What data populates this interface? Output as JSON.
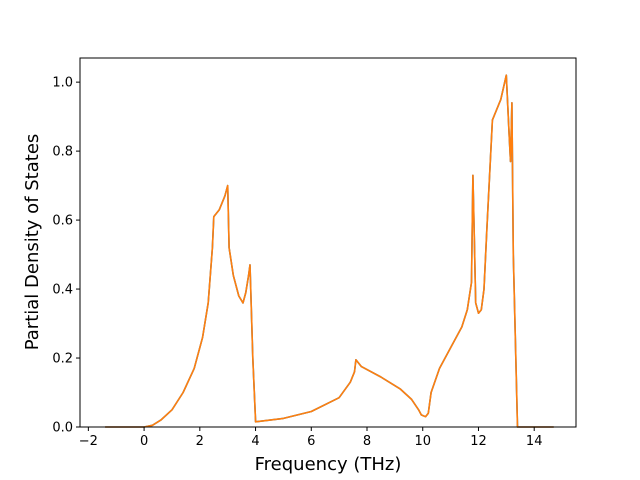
{
  "chart_data": {
    "type": "line",
    "title": "",
    "xlabel": "Frequency (THz)",
    "ylabel": "Partial Density of States",
    "xlim": [
      -2.3,
      15.5
    ],
    "ylim": [
      0.0,
      1.07
    ],
    "x_ticks": [
      -2,
      0,
      2,
      4,
      6,
      8,
      10,
      12,
      14
    ],
    "y_ticks": [
      0.0,
      0.2,
      0.4,
      0.6,
      0.8,
      1.0
    ],
    "x_tick_labels": [
      "−2",
      "0",
      "2",
      "4",
      "6",
      "8",
      "10",
      "12",
      "14"
    ],
    "y_tick_labels": [
      "0.0",
      "0.2",
      "0.4",
      "0.6",
      "0.8",
      "1.0"
    ],
    "grid": false,
    "legend": "none",
    "colors": {
      "series_1": "#1f77b4",
      "series_2": "#ff7f0e"
    },
    "series": [
      {
        "x": [
          -1.4,
          -0.6,
          0.0,
          0.3,
          0.6,
          1.0,
          1.4,
          1.8,
          2.1,
          2.3,
          2.45,
          2.5,
          2.7,
          2.9,
          3.0,
          3.05,
          3.2,
          3.4,
          3.55,
          3.65,
          3.75,
          3.8,
          3.9,
          4.0,
          5.0,
          6.0,
          7.0,
          7.4,
          7.55,
          7.6,
          7.8,
          8.5,
          9.2,
          9.6,
          9.85,
          9.95,
          10.1,
          10.2,
          10.3,
          10.6,
          11.0,
          11.4,
          11.6,
          11.75,
          11.8,
          11.85,
          11.9,
          12.0,
          12.1,
          12.2,
          12.3,
          12.5,
          12.8,
          13.0,
          13.1,
          13.15,
          13.2,
          13.25,
          13.4,
          13.6,
          14.0,
          14.7
        ],
        "values": [
          0.0,
          0.0,
          0.0,
          0.005,
          0.02,
          0.05,
          0.1,
          0.17,
          0.26,
          0.36,
          0.52,
          0.61,
          0.63,
          0.67,
          0.7,
          0.52,
          0.44,
          0.38,
          0.36,
          0.39,
          0.44,
          0.47,
          0.2,
          0.015,
          0.025,
          0.045,
          0.085,
          0.13,
          0.16,
          0.195,
          0.175,
          0.145,
          0.11,
          0.08,
          0.05,
          0.035,
          0.03,
          0.04,
          0.1,
          0.17,
          0.23,
          0.29,
          0.34,
          0.42,
          0.73,
          0.55,
          0.36,
          0.33,
          0.34,
          0.4,
          0.57,
          0.89,
          0.95,
          1.02,
          0.85,
          0.77,
          0.94,
          0.5,
          0.0,
          0.0,
          0.0,
          0.0
        ]
      },
      {
        "x": [
          -1.4,
          -0.6,
          0.0,
          0.3,
          0.6,
          1.0,
          1.4,
          1.8,
          2.1,
          2.3,
          2.45,
          2.5,
          2.7,
          2.9,
          3.0,
          3.05,
          3.2,
          3.4,
          3.55,
          3.65,
          3.75,
          3.8,
          3.9,
          4.0,
          5.0,
          6.0,
          7.0,
          7.4,
          7.55,
          7.6,
          7.8,
          8.5,
          9.2,
          9.6,
          9.85,
          9.95,
          10.1,
          10.2,
          10.3,
          10.6,
          11.0,
          11.4,
          11.6,
          11.75,
          11.8,
          11.85,
          11.9,
          12.0,
          12.1,
          12.2,
          12.3,
          12.5,
          12.8,
          13.0,
          13.1,
          13.15,
          13.2,
          13.25,
          13.4,
          13.6,
          14.0,
          14.7
        ],
        "values": [
          0.0,
          0.0,
          0.0,
          0.005,
          0.02,
          0.05,
          0.1,
          0.17,
          0.26,
          0.36,
          0.52,
          0.61,
          0.63,
          0.67,
          0.7,
          0.52,
          0.44,
          0.38,
          0.36,
          0.39,
          0.44,
          0.47,
          0.2,
          0.015,
          0.025,
          0.045,
          0.085,
          0.13,
          0.16,
          0.195,
          0.175,
          0.145,
          0.11,
          0.08,
          0.05,
          0.035,
          0.03,
          0.04,
          0.1,
          0.17,
          0.23,
          0.29,
          0.34,
          0.42,
          0.73,
          0.55,
          0.36,
          0.33,
          0.34,
          0.4,
          0.57,
          0.89,
          0.95,
          1.02,
          0.85,
          0.77,
          0.94,
          0.5,
          0.0,
          0.0,
          0.0,
          0.0
        ]
      }
    ]
  }
}
